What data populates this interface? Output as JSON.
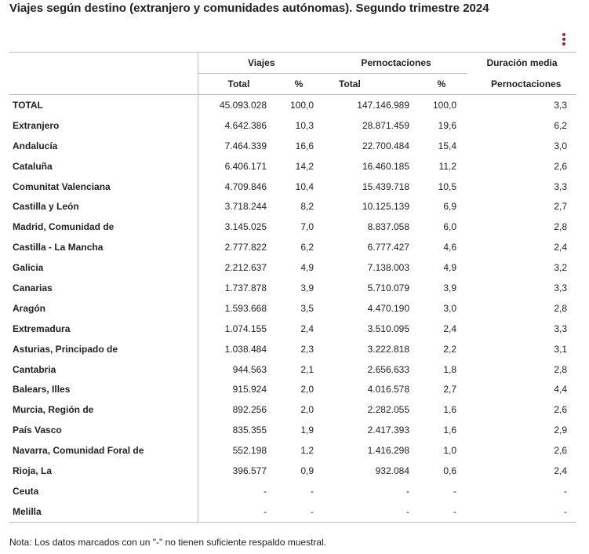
{
  "title": "Viajes según destino (extranjero y comunidades autónomas). Segundo trimestre 2024",
  "menu_icon": "kebab-vertical-icon",
  "accent_color": "#9b2335",
  "table": {
    "group_headers": {
      "viajes": "Viajes",
      "pernoctaciones": "Pernoctaciones",
      "duracion": "Duración media"
    },
    "sub_headers": {
      "viajes_total": "Total",
      "viajes_pct": "%",
      "pern_total": "Total",
      "pern_pct": "%",
      "dur_pern": "Pernoctaciones"
    },
    "rows": [
      {
        "label": "TOTAL",
        "viajes_total": "45.093.028",
        "viajes_pct": "100,0",
        "pern_total": "147.146.989",
        "pern_pct": "100,0",
        "duracion": "3,3"
      },
      {
        "label": "Extranjero",
        "viajes_total": "4.642.386",
        "viajes_pct": "10,3",
        "pern_total": "28.871.459",
        "pern_pct": "19,6",
        "duracion": "6,2"
      },
      {
        "label": "Andalucía",
        "viajes_total": "7.464.339",
        "viajes_pct": "16,6",
        "pern_total": "22.700.484",
        "pern_pct": "15,4",
        "duracion": "3,0"
      },
      {
        "label": "Cataluña",
        "viajes_total": "6.406.171",
        "viajes_pct": "14,2",
        "pern_total": "16.460.185",
        "pern_pct": "11,2",
        "duracion": "2,6"
      },
      {
        "label": "Comunitat Valenciana",
        "viajes_total": "4.709.846",
        "viajes_pct": "10,4",
        "pern_total": "15.439.718",
        "pern_pct": "10,5",
        "duracion": "3,3"
      },
      {
        "label": "Castilla y León",
        "viajes_total": "3.718.244",
        "viajes_pct": "8,2",
        "pern_total": "10.125.139",
        "pern_pct": "6,9",
        "duracion": "2,7"
      },
      {
        "label": "Madrid, Comunidad de",
        "viajes_total": "3.145.025",
        "viajes_pct": "7,0",
        "pern_total": "8.837.058",
        "pern_pct": "6,0",
        "duracion": "2,8"
      },
      {
        "label": "Castilla - La Mancha",
        "viajes_total": "2.777.822",
        "viajes_pct": "6,2",
        "pern_total": "6.777.427",
        "pern_pct": "4,6",
        "duracion": "2,4"
      },
      {
        "label": "Galicia",
        "viajes_total": "2.212.637",
        "viajes_pct": "4,9",
        "pern_total": "7.138.003",
        "pern_pct": "4,9",
        "duracion": "3,2"
      },
      {
        "label": "Canarias",
        "viajes_total": "1.737.878",
        "viajes_pct": "3,9",
        "pern_total": "5.710.079",
        "pern_pct": "3,9",
        "duracion": "3,3"
      },
      {
        "label": "Aragón",
        "viajes_total": "1.593.668",
        "viajes_pct": "3,5",
        "pern_total": "4.470.190",
        "pern_pct": "3,0",
        "duracion": "2,8"
      },
      {
        "label": "Extremadura",
        "viajes_total": "1.074.155",
        "viajes_pct": "2,4",
        "pern_total": "3.510.095",
        "pern_pct": "2,4",
        "duracion": "3,3"
      },
      {
        "label": "Asturias, Principado de",
        "viajes_total": "1.038.484",
        "viajes_pct": "2,3",
        "pern_total": "3.222.818",
        "pern_pct": "2,2",
        "duracion": "3,1"
      },
      {
        "label": "Cantabria",
        "viajes_total": "944.563",
        "viajes_pct": "2,1",
        "pern_total": "2.656.633",
        "pern_pct": "1,8",
        "duracion": "2,8"
      },
      {
        "label": "Balears, Illes",
        "viajes_total": "915.924",
        "viajes_pct": "2,0",
        "pern_total": "4.016.578",
        "pern_pct": "2,7",
        "duracion": "4,4"
      },
      {
        "label": "Murcia, Región de",
        "viajes_total": "892.256",
        "viajes_pct": "2,0",
        "pern_total": "2.282.055",
        "pern_pct": "1,6",
        "duracion": "2,6"
      },
      {
        "label": "País Vasco",
        "viajes_total": "835.355",
        "viajes_pct": "1,9",
        "pern_total": "2.417.393",
        "pern_pct": "1,6",
        "duracion": "2,9"
      },
      {
        "label": "Navarra, Comunidad Foral de",
        "viajes_total": "552.198",
        "viajes_pct": "1,2",
        "pern_total": "1.416.298",
        "pern_pct": "1,0",
        "duracion": "2,6"
      },
      {
        "label": "Rioja, La",
        "viajes_total": "396.577",
        "viajes_pct": "0,9",
        "pern_total": "932.084",
        "pern_pct": "0,6",
        "duracion": "2,4"
      },
      {
        "label": "Ceuta",
        "viajes_total": "-",
        "viajes_pct": "-",
        "pern_total": "-",
        "pern_pct": "-",
        "duracion": "-"
      },
      {
        "label": "Melilla",
        "viajes_total": "-",
        "viajes_pct": "-",
        "pern_total": "-",
        "pern_pct": "-",
        "duracion": "-"
      }
    ]
  },
  "note": "Nota: Los datos marcados con un \"-\" no tienen suficiente respaldo muestral."
}
